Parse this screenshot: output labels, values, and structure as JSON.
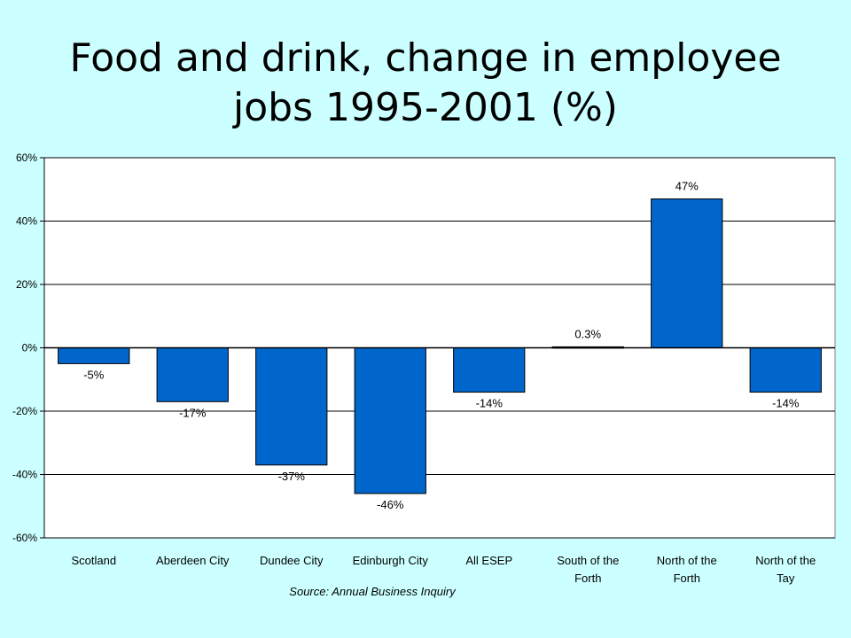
{
  "title": {
    "line1": "Food and drink, change in employee",
    "line2": "jobs 1995-2001 (%)"
  },
  "source": "Source: Annual Business Inquiry",
  "colors": {
    "bar": "#0066cc",
    "plot_bg": "#ffffff",
    "page_bg": "#ccffff",
    "grid": "#000000"
  },
  "chart_data": {
    "type": "bar",
    "categories": [
      [
        "Scotland"
      ],
      [
        "Aberdeen City"
      ],
      [
        "Dundee City"
      ],
      [
        "Edinburgh City"
      ],
      [
        "All ESEP"
      ],
      [
        "South of the",
        "Forth"
      ],
      [
        "North of the",
        "Forth"
      ],
      [
        "North of the",
        "Tay"
      ]
    ],
    "values": [
      -5,
      -17,
      -37,
      -46,
      -14,
      0.3,
      47,
      -14
    ],
    "data_labels": [
      "-5%",
      "-17%",
      "-37%",
      "-46%",
      "-14%",
      "0.3%",
      "47%",
      "-14%"
    ],
    "ylim": [
      -60,
      60
    ],
    "yticks": [
      60,
      40,
      20,
      0,
      -20,
      -40,
      -60
    ],
    "ytick_labels": [
      "60%",
      "40%",
      "20%",
      "0%",
      "-20%",
      "-40%",
      "-60%"
    ],
    "grid": true,
    "xlabel": "",
    "ylabel": ""
  }
}
